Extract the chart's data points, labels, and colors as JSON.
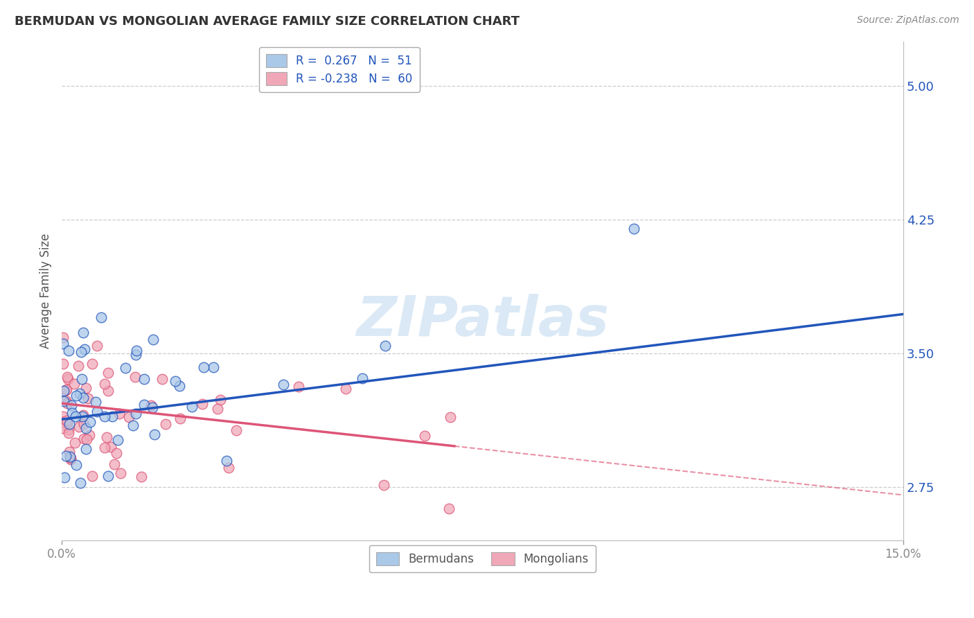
{
  "title": "BERMUDAN VS MONGOLIAN AVERAGE FAMILY SIZE CORRELATION CHART",
  "source": "Source: ZipAtlas.com",
  "ylabel": "Average Family Size",
  "yticks": [
    2.75,
    3.5,
    4.25,
    5.0
  ],
  "xlim": [
    0.0,
    15.0
  ],
  "ylim": [
    2.45,
    5.25
  ],
  "watermark": "ZIPatlas",
  "legend_r_blue": "0.267",
  "legend_n_blue": "51",
  "legend_r_pink": "-0.238",
  "legend_n_pink": "60",
  "blue_line_start_y": 3.13,
  "blue_line_end_y": 3.72,
  "pink_line_start_y": 3.22,
  "pink_line_solid_end_x": 7.0,
  "pink_line_solid_end_y": 2.98,
  "pink_line_dash_end_y": 2.5,
  "blue_color": "#aac8e8",
  "pink_color": "#f0a8b8",
  "blue_line_color": "#2255bb",
  "pink_line_color": "#dd5577",
  "grid_color": "#cccccc",
  "background_color": "#ffffff",
  "title_color": "#333333",
  "axis_label_color": "#2255bb",
  "tick_label_color": "#888888",
  "watermark_color": "#b8d4ee",
  "watermark_alpha": 0.5,
  "scatter_size": 110,
  "scatter_alpha": 0.75,
  "scatter_linewidth": 1.0
}
